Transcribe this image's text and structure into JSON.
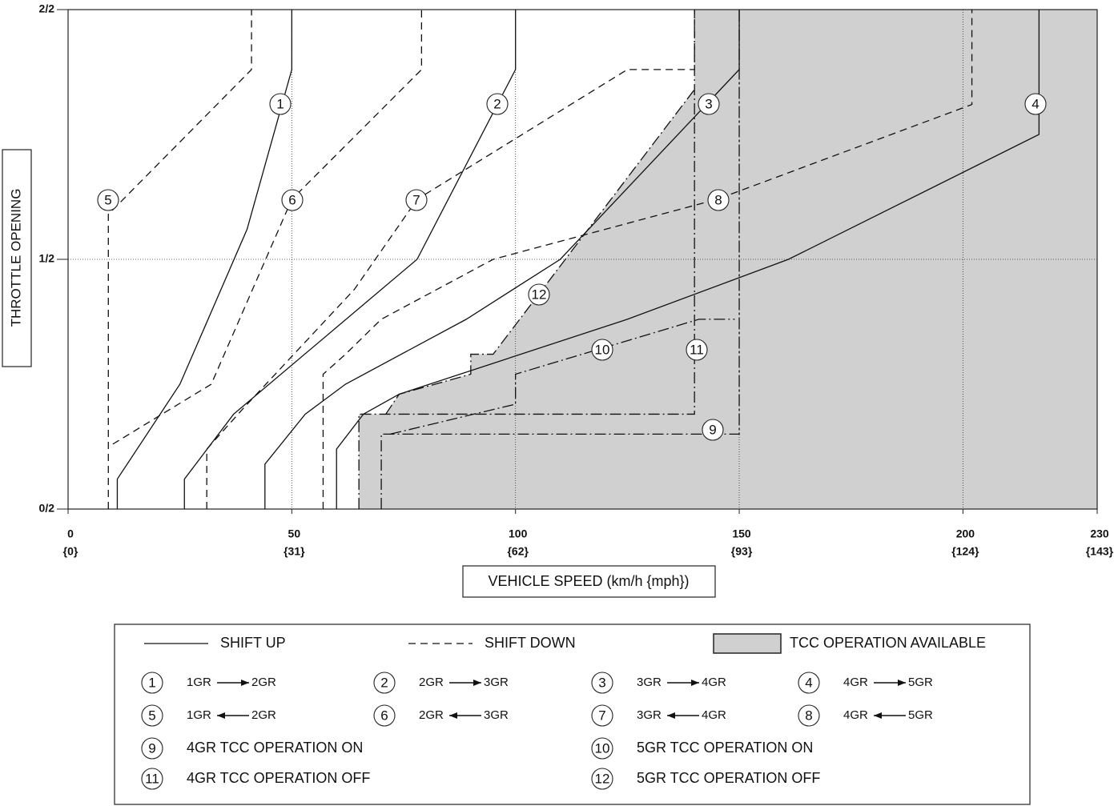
{
  "chart_data": {
    "type": "line",
    "xlabel": "VEHICLE SPEED (km/h {mph})",
    "ylabel": "THROTTLE OPENING",
    "xlim": [
      0,
      230
    ],
    "ylim": [
      0,
      1
    ],
    "xticks": [
      0,
      50,
      100,
      150,
      200,
      230
    ],
    "xtick_sublabels": [
      "{0}",
      "{31}",
      "{62}",
      "{93}",
      "{124}",
      "{143}"
    ],
    "yticks": [
      {
        "value": 0,
        "label": "0/2"
      },
      {
        "value": 0.5,
        "label": "1/2"
      },
      {
        "value": 1,
        "label": "2/2"
      }
    ],
    "grid": true,
    "area": {
      "name": "TCC OPERATION AVAILABLE",
      "color": "#d0d0d0",
      "x": [
        65,
        65,
        71,
        74,
        90,
        90,
        95,
        140,
        140,
        230,
        230
      ],
      "values": [
        0,
        0.19,
        0.19,
        0.23,
        0.27,
        0.31,
        0.31,
        0.84,
        1,
        1,
        0
      ]
    },
    "series": [
      {
        "name": "1",
        "style": "solid",
        "x": [
          11,
          11,
          25,
          40,
          50,
          50
        ],
        "values": [
          0,
          0.06,
          0.25,
          0.56,
          0.88,
          1
        ]
      },
      {
        "name": "2",
        "style": "solid",
        "x": [
          26,
          26,
          37,
          78,
          100,
          100
        ],
        "values": [
          0,
          0.06,
          0.19,
          0.5,
          0.88,
          1
        ]
      },
      {
        "name": "3",
        "style": "solid",
        "x": [
          44,
          44,
          53,
          62,
          89,
          110,
          150,
          150
        ],
        "values": [
          0,
          0.09,
          0.19,
          0.25,
          0.38,
          0.5,
          0.88,
          1
        ]
      },
      {
        "name": "4",
        "style": "solid",
        "x": [
          60,
          60,
          66,
          74,
          125,
          161,
          217,
          217
        ],
        "values": [
          0,
          0.12,
          0.19,
          0.23,
          0.38,
          0.5,
          0.75,
          1
        ]
      },
      {
        "name": "5",
        "style": "dashed",
        "x": [
          9,
          9,
          41,
          41
        ],
        "values": [
          0,
          0.59,
          0.88,
          1
        ]
      },
      {
        "name": "6",
        "style": "dashed",
        "x": [
          10,
          32,
          50,
          79,
          79
        ],
        "values": [
          0.13,
          0.25,
          0.62,
          0.88,
          1
        ]
      },
      {
        "name": "7",
        "style": "dashed",
        "x": [
          31,
          31,
          39,
          64,
          78,
          125,
          140,
          140
        ],
        "values": [
          0,
          0.12,
          0.2,
          0.44,
          0.62,
          0.88,
          0.88,
          1
        ]
      },
      {
        "name": "8",
        "style": "dashed",
        "x": [
          57,
          57,
          62,
          70,
          95,
          145,
          202,
          202
        ],
        "values": [
          0,
          0.27,
          0.31,
          0.38,
          0.5,
          0.62,
          0.81,
          1
        ]
      },
      {
        "name": "9",
        "style": "dashdot",
        "x": [
          70,
          70,
          150,
          150
        ],
        "values": [
          0,
          0.15,
          0.15,
          1
        ]
      },
      {
        "name": "10",
        "style": "dashdot",
        "x": [
          72,
          100,
          100,
          141,
          149
        ],
        "values": [
          0.15,
          0.21,
          0.27,
          0.38,
          0.38
        ]
      },
      {
        "name": "11",
        "style": "dashdot",
        "x": [
          65,
          65,
          140,
          140
        ],
        "values": [
          0,
          0.19,
          0.19,
          1
        ]
      },
      {
        "name": "12",
        "style": "dashdot",
        "x": [
          71,
          74,
          90,
          90,
          95,
          140
        ],
        "values": [
          0.19,
          0.23,
          0.27,
          0.31,
          0.31,
          0.84
        ]
      }
    ]
  },
  "legend": {
    "styles": [
      {
        "label": "SHIFT UP",
        "style": "solid"
      },
      {
        "label": "SHIFT DOWN",
        "style": "dashed"
      },
      {
        "label": "TCC OPERATION AVAILABLE",
        "style": "area"
      }
    ],
    "entries": [
      {
        "number": "1",
        "from": "1GR",
        "to": "2GR",
        "direction": "up"
      },
      {
        "number": "2",
        "from": "2GR",
        "to": "3GR",
        "direction": "up"
      },
      {
        "number": "3",
        "from": "3GR",
        "to": "4GR",
        "direction": "up"
      },
      {
        "number": "4",
        "from": "4GR",
        "to": "5GR",
        "direction": "up"
      },
      {
        "number": "5",
        "from": "1GR",
        "to": "2GR",
        "direction": "down"
      },
      {
        "number": "6",
        "from": "2GR",
        "to": "3GR",
        "direction": "down"
      },
      {
        "number": "7",
        "from": "3GR",
        "to": "4GR",
        "direction": "down"
      },
      {
        "number": "8",
        "from": "4GR",
        "to": "5GR",
        "direction": "down"
      },
      {
        "number": "9",
        "text": "4GR TCC OPERATION ON"
      },
      {
        "number": "10",
        "text": "5GR TCC OPERATION ON"
      },
      {
        "number": "11",
        "text": "4GR TCC OPERATION OFF"
      },
      {
        "number": "12",
        "text": "5GR TCC OPERATION OFF"
      }
    ]
  }
}
